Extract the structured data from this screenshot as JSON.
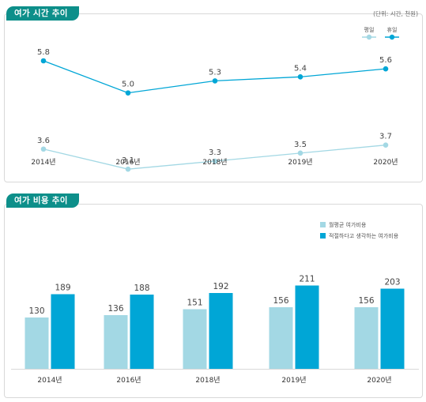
{
  "colors": {
    "accent": "#0d8f8a",
    "weekday": "#a3d8e4",
    "holiday": "#00a6d6"
  },
  "section1": {
    "tab_label": "여가 시간 추이",
    "unit": "(단위: 시간, 천원)"
  },
  "section2": {
    "tab_label": "여가 비용 추이"
  },
  "chart_data": [
    {
      "type": "line",
      "x": [
        "2014년",
        "2016년",
        "2018년",
        "2019년",
        "2020년"
      ],
      "series": [
        {
          "name": "평일",
          "values": [
            3.6,
            3.1,
            3.3,
            3.5,
            3.7
          ],
          "color": "#a3d8e4"
        },
        {
          "name": "휴일",
          "values": [
            5.8,
            5.0,
            5.3,
            5.4,
            5.6
          ],
          "color": "#00a6d6"
        }
      ],
      "legend": "top-right",
      "grid": false
    },
    {
      "type": "bar",
      "categories": [
        "2014년",
        "2016년",
        "2018년",
        "2019년",
        "2020년"
      ],
      "series": [
        {
          "name": "월평균 여가비용",
          "values": [
            130,
            136,
            151,
            156,
            156
          ],
          "color": "#a3d8e4"
        },
        {
          "name": "적절하다고 생각하는 여가비용",
          "values": [
            189,
            188,
            192,
            211,
            203
          ],
          "color": "#00a6d6"
        }
      ],
      "legend": "top-right",
      "grid": false
    }
  ]
}
